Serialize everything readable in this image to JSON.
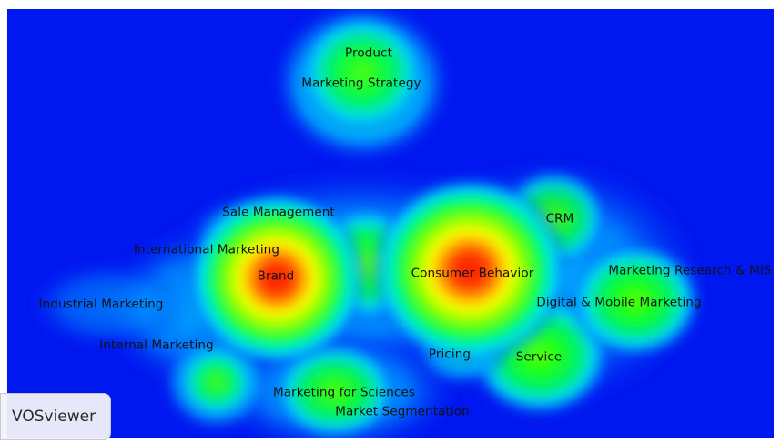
{
  "app": {
    "name": "VOSviewer"
  },
  "map": {
    "background": "#0018f0",
    "items": [
      {
        "label": "Product",
        "density": 0.55
      },
      {
        "label": "Marketing Strategy",
        "density": 0.55
      },
      {
        "label": "Sale Management",
        "density": 0.45
      },
      {
        "label": "International Marketing",
        "density": 0.55
      },
      {
        "label": "Brand",
        "density": 1.0
      },
      {
        "label": "Industrial Marketing",
        "density": 0.35
      },
      {
        "label": "Internal Marketing",
        "density": 0.45
      },
      {
        "label": "Consumer Behavior",
        "density": 1.0
      },
      {
        "label": "CRM",
        "density": 0.55
      },
      {
        "label": "Marketing Research & MIS",
        "density": 0.55
      },
      {
        "label": "Digital & Mobile Marketing",
        "density": 0.65
      },
      {
        "label": "Pricing",
        "density": 0.45
      },
      {
        "label": "Service",
        "density": 0.65
      },
      {
        "label": "Marketing for Sciences",
        "density": 0.55
      },
      {
        "label": "Market Segmentation",
        "density": 0.55
      }
    ]
  }
}
